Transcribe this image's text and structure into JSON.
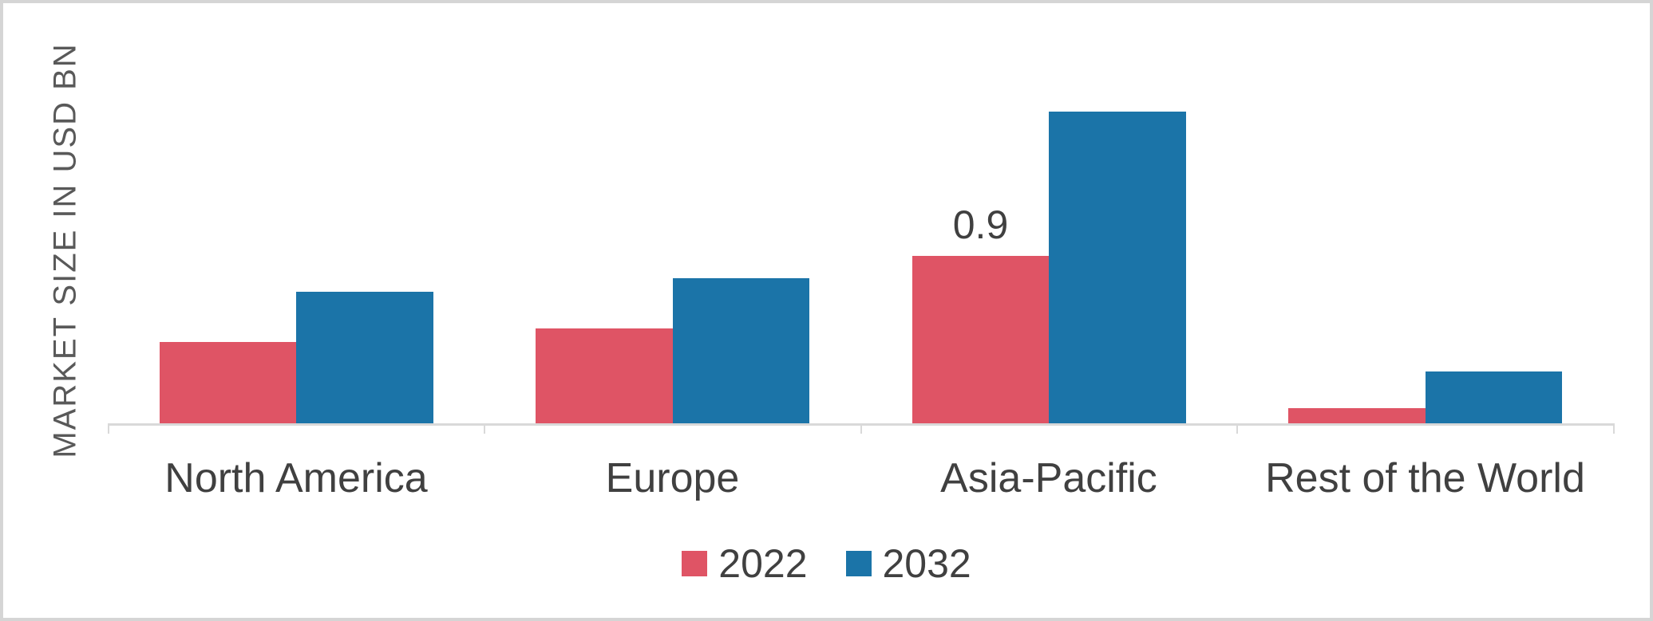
{
  "chart_data": {
    "type": "bar",
    "title": "",
    "xlabel": "",
    "ylabel": "MARKET SIZE IN USD BN",
    "categories": [
      "North America",
      "Europe",
      "Asia-Pacific",
      "Rest of the World"
    ],
    "series": [
      {
        "name": "2022",
        "color": "#DF5465",
        "values": [
          0.44,
          0.51,
          0.9,
          0.08
        ]
      },
      {
        "name": "2032",
        "color": "#1B74A8",
        "values": [
          0.71,
          0.78,
          1.68,
          0.28
        ]
      }
    ],
    "data_labels": [
      {
        "series": "2022",
        "category": "Asia-Pacific",
        "text": "0.9"
      }
    ],
    "ylim": [
      0,
      2.2
    ],
    "grid": false,
    "legend_position": "bottom",
    "colors": {
      "axis": "#D9D9D9",
      "border": "#D5D5D5",
      "label_text": "#404040",
      "axis_title_text": "#595959"
    }
  }
}
